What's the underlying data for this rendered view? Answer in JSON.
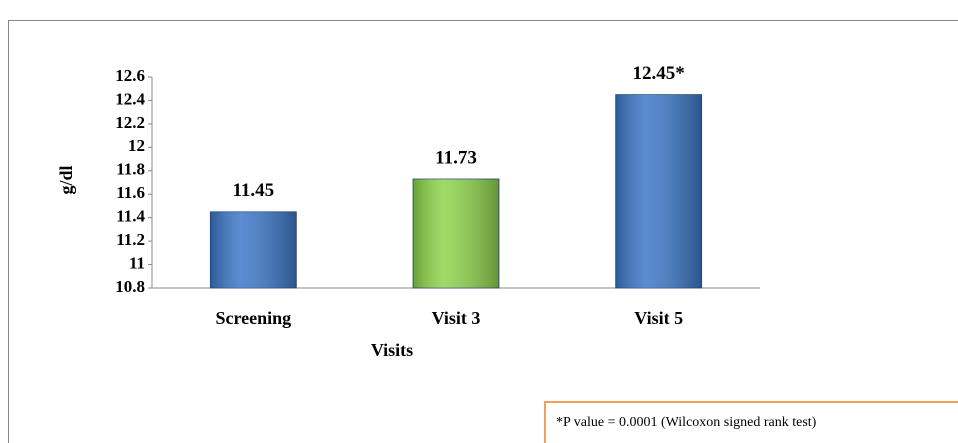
{
  "chart_data": {
    "type": "bar",
    "categories": [
      "Screening",
      "Visit 3",
      "Visit 5"
    ],
    "values": [
      11.45,
      11.73,
      12.45
    ],
    "value_labels": [
      "11.45",
      "11.73",
      "12.45*"
    ],
    "colors": [
      "#3c78c8",
      "#8fd44c",
      "#3c78c8"
    ],
    "ylim": [
      10.8,
      12.6
    ],
    "yticks": [
      10.8,
      11,
      11.2,
      11.4,
      11.6,
      11.8,
      12,
      12.2,
      12.4,
      12.6
    ],
    "y_label": "g/dl",
    "x_label": "Visits",
    "annotation": "*P value = 0.0001 (Wilcoxon signed rank test)"
  }
}
